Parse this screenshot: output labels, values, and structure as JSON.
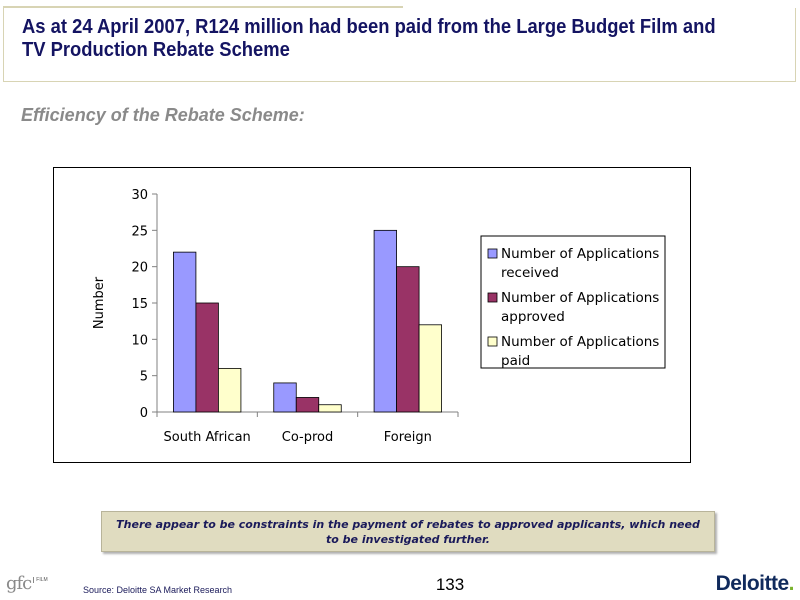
{
  "header": {
    "title": "As at 24 April 2007, R124 million had been paid from the Large Budget Film and TV Production Rebate Scheme",
    "subtitle": "Efficiency of the Rebate Scheme:"
  },
  "chart_data": {
    "type": "bar",
    "title": "",
    "xlabel": "",
    "ylabel": "Number",
    "ylim": [
      0,
      30
    ],
    "yticks": [
      0,
      5,
      10,
      15,
      20,
      25,
      30
    ],
    "categories": [
      "South African",
      "Co-prod",
      "Foreign"
    ],
    "series": [
      {
        "name": "Number of Applications received",
        "name_lines": [
          "Number of Applications",
          "received"
        ],
        "values": [
          22,
          4,
          25
        ],
        "color": "#9999ff"
      },
      {
        "name": "Number of Applications approved",
        "name_lines": [
          "Number of Applications",
          "approved"
        ],
        "values": [
          15,
          2,
          20
        ],
        "color": "#993366"
      },
      {
        "name": "Number of Applications paid",
        "name_lines": [
          "Number of Applications",
          "paid"
        ],
        "values": [
          6,
          1,
          12
        ],
        "color": "#ffffcc"
      }
    ],
    "grid": false,
    "legend": "right"
  },
  "note": {
    "text": "There appear to be constraints in the payment of rebates to approved applicants, which need to be investigated further."
  },
  "footer": {
    "page_number": "133",
    "source": "Source: Deloitte SA Market Research",
    "logo_left_text": "gfc",
    "logo_left_sub": "FILM",
    "logo_right_text": "Deloitte",
    "logo_right_dot": "."
  }
}
